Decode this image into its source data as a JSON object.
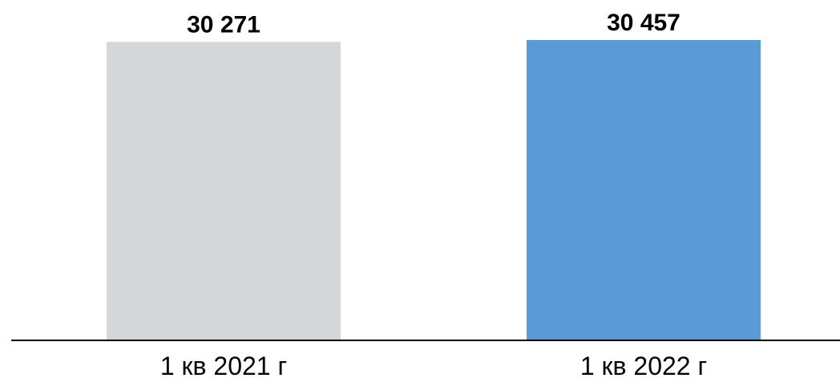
{
  "chart_data": {
    "type": "bar",
    "title": "",
    "xlabel": "",
    "ylabel": "",
    "categories": [
      "1 кв 2021 г",
      "1 кв 2022 г"
    ],
    "values": [
      30271,
      30457
    ],
    "data_labels": [
      "30 271",
      "30 457"
    ],
    "bar_colors": [
      "#d5d6d8",
      "#5b9bd5"
    ],
    "axis_color": "#000000",
    "ylim": [
      0,
      30457
    ],
    "grid": false,
    "legend": "none"
  }
}
